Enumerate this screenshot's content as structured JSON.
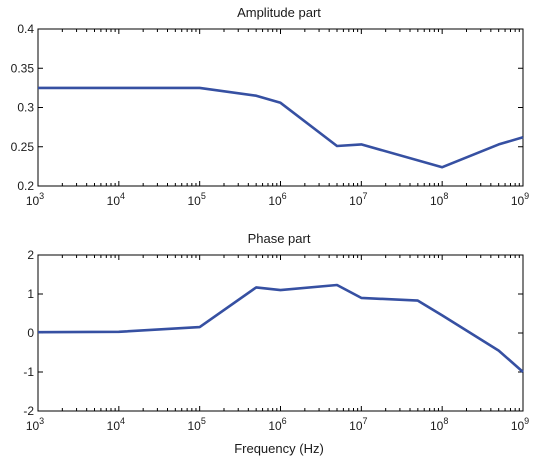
{
  "chart_data": [
    {
      "type": "line",
      "title": "Amplitude part",
      "xlabel": "",
      "ylabel": "",
      "xscale": "log",
      "xlim": [
        1000,
        1000000000
      ],
      "ylim": [
        0.2,
        0.4
      ],
      "xticks": [
        {
          "base": "10",
          "exp": "3",
          "value": 1000
        },
        {
          "base": "10",
          "exp": "4",
          "value": 10000
        },
        {
          "base": "10",
          "exp": "5",
          "value": 100000
        },
        {
          "base": "10",
          "exp": "6",
          "value": 1000000
        },
        {
          "base": "10",
          "exp": "7",
          "value": 10000000
        },
        {
          "base": "10",
          "exp": "8",
          "value": 100000000
        },
        {
          "base": "10",
          "exp": "9",
          "value": 1000000000
        }
      ],
      "yticks": [
        {
          "label": "0.2",
          "value": 0.2
        },
        {
          "label": "0.25",
          "value": 0.25
        },
        {
          "label": "0.3",
          "value": 0.3
        },
        {
          "label": "0.35",
          "value": 0.35
        },
        {
          "label": "0.4",
          "value": 0.4
        }
      ],
      "grid": false,
      "line_color": "#3650a2",
      "series": [
        {
          "x": [
            1000,
            100000,
            500000,
            1000000,
            5000000,
            10000000,
            100000000,
            500000000,
            1000000000
          ],
          "values": [
            0.325,
            0.325,
            0.315,
            0.306,
            0.251,
            0.253,
            0.224,
            0.253,
            0.262
          ]
        }
      ]
    },
    {
      "type": "line",
      "title": "Phase part",
      "xlabel": "Frequency (Hz)",
      "ylabel": "",
      "xscale": "log",
      "xlim": [
        1000,
        1000000000
      ],
      "ylim": [
        -2,
        2
      ],
      "xticks": [
        {
          "base": "10",
          "exp": "3",
          "value": 1000
        },
        {
          "base": "10",
          "exp": "4",
          "value": 10000
        },
        {
          "base": "10",
          "exp": "5",
          "value": 100000
        },
        {
          "base": "10",
          "exp": "6",
          "value": 1000000
        },
        {
          "base": "10",
          "exp": "7",
          "value": 10000000
        },
        {
          "base": "10",
          "exp": "8",
          "value": 100000000
        },
        {
          "base": "10",
          "exp": "9",
          "value": 1000000000
        }
      ],
      "yticks": [
        {
          "label": "-2",
          "value": -2
        },
        {
          "label": "-1",
          "value": -1
        },
        {
          "label": "0",
          "value": 0
        },
        {
          "label": "1",
          "value": 1
        },
        {
          "label": "2",
          "value": 2
        }
      ],
      "grid": false,
      "line_color": "#3650a2",
      "series": [
        {
          "x": [
            1000,
            10000,
            100000,
            500000,
            1000000,
            5000000,
            10000000,
            50000000,
            100000000,
            500000000,
            1000000000
          ],
          "values": [
            0.02,
            0.03,
            0.15,
            1.17,
            1.1,
            1.23,
            0.9,
            0.83,
            0.45,
            -0.45,
            -1.0
          ]
        }
      ]
    }
  ]
}
